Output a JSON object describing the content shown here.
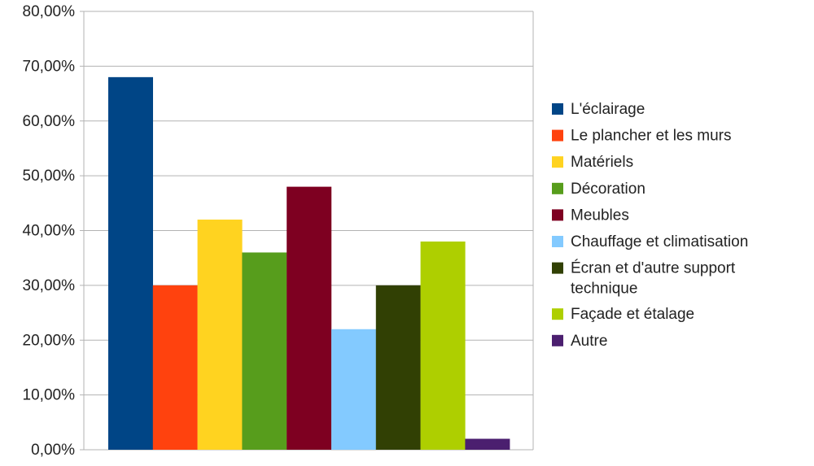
{
  "chart_data": {
    "type": "bar",
    "title": "",
    "xlabel": "",
    "ylabel": "",
    "ylim": [
      0,
      0.8
    ],
    "yticks": [
      0,
      0.1,
      0.2,
      0.3,
      0.4,
      0.5,
      0.6,
      0.7,
      0.8
    ],
    "ytick_labels": [
      "0,00%",
      "10,00%",
      "20,00%",
      "30,00%",
      "40,00%",
      "50,00%",
      "60,00%",
      "70,00%",
      "80,00%"
    ],
    "grid": "horizontal",
    "legend_position": "right",
    "series": [
      {
        "name": "L'éclairage",
        "value": 0.68,
        "color": "#004586"
      },
      {
        "name": "Le plancher et les murs",
        "value": 0.3,
        "color": "#ff420e"
      },
      {
        "name": "Matériels",
        "value": 0.42,
        "color": "#ffd320"
      },
      {
        "name": "Décoration",
        "value": 0.36,
        "color": "#579d1c"
      },
      {
        "name": "Meubles",
        "value": 0.48,
        "color": "#7e0021"
      },
      {
        "name": "Chauffage et climatisation",
        "value": 0.22,
        "color": "#83caff"
      },
      {
        "name": "Écran et d'autre support technique",
        "value": 0.3,
        "color": "#314004"
      },
      {
        "name": "Façade et étalage",
        "value": 0.38,
        "color": "#aecf00"
      },
      {
        "name": "Autre",
        "value": 0.02,
        "color": "#4b1f6f"
      }
    ]
  }
}
